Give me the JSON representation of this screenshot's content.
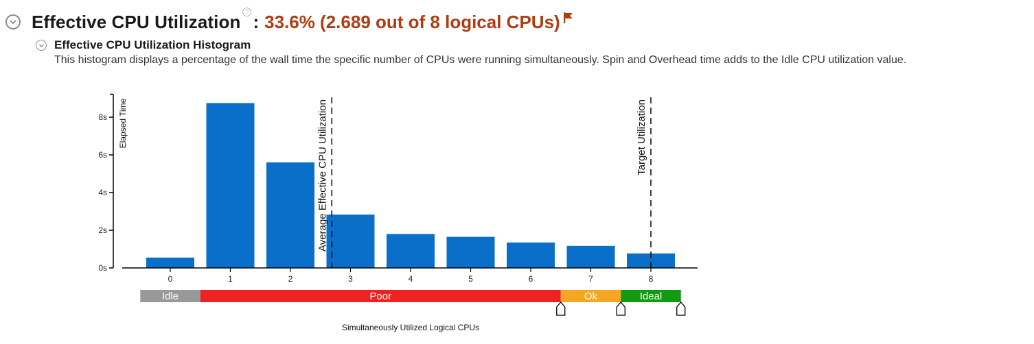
{
  "header": {
    "title": "Effective CPU Utilization",
    "help_glyph": "?",
    "separator": ":",
    "value_text": "33.6% (2.689 out of 8 logical CPUs)",
    "value_color": "#b13b12",
    "flag_icon": "flag-icon",
    "collapse_icon": "chevron-down-icon"
  },
  "histogram": {
    "title": "Effective CPU Utilization Histogram",
    "description": "This histogram displays a percentage of the wall time the specific number of CPUs were running simultaneously. Spin and Overhead time adds to the Idle CPU utilization value.",
    "collapse_icon": "chevron-down-icon"
  },
  "chart_data": {
    "type": "bar",
    "categories": [
      "0",
      "1",
      "2",
      "3",
      "4",
      "5",
      "6",
      "7",
      "8"
    ],
    "values": [
      0.55,
      8.75,
      5.6,
      2.83,
      1.8,
      1.65,
      1.35,
      1.17,
      0.77
    ],
    "bar_color": "#0a6fc8",
    "ylabel": "Elapsed Time",
    "xlabel": "Simultaneously Utilized Logical CPUs",
    "ylim": [
      0,
      9
    ],
    "y_ticks": [
      0,
      2,
      4,
      6,
      8
    ],
    "y_tick_labels": [
      "0s",
      "2s",
      "4s",
      "6s",
      "8s"
    ],
    "markers": [
      {
        "label": "Average Effective CPU Utilization",
        "x": 2.689
      },
      {
        "label": "Target Utilization",
        "x": 8
      }
    ],
    "bands": [
      {
        "label": "Idle",
        "from": -0.5,
        "to": 0.5,
        "color": "#999999"
      },
      {
        "label": "Poor",
        "from": 0.5,
        "to": 6.5,
        "color": "#ee2222"
      },
      {
        "label": "Ok",
        "from": 6.5,
        "to": 7.5,
        "color": "#f5a623"
      },
      {
        "label": "Ideal",
        "from": 7.5,
        "to": 8.5,
        "color": "#129a12"
      }
    ],
    "band_handles_at": [
      6.5,
      7.5,
      8.5
    ],
    "grid": false,
    "legend": "none"
  }
}
